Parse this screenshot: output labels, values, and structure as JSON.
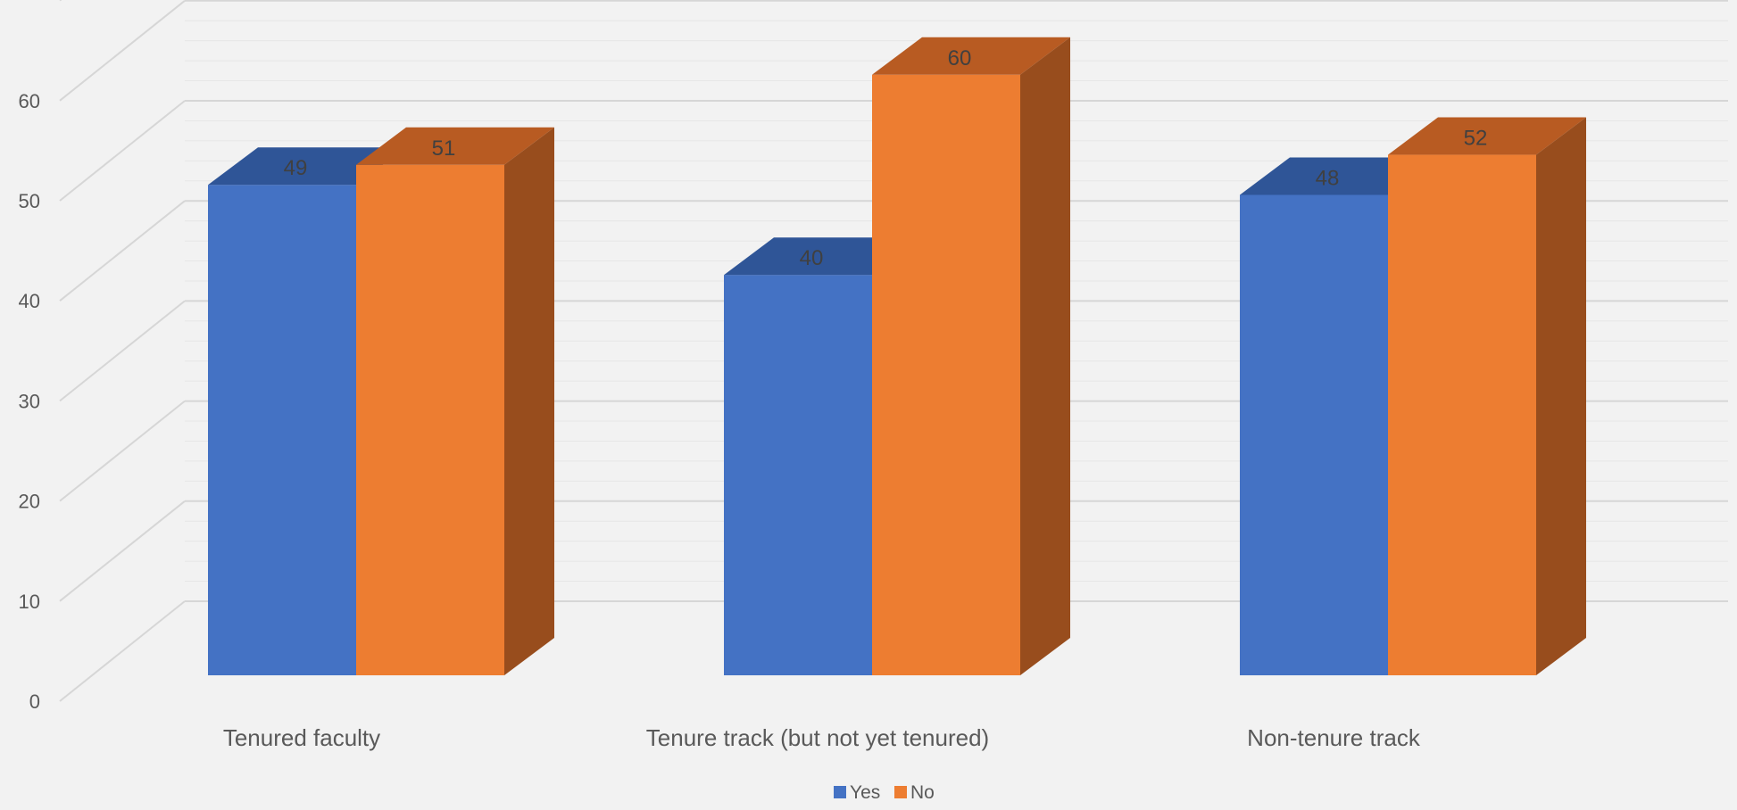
{
  "chart_data": {
    "type": "bar",
    "categories": [
      "Tenured faculty",
      "Tenure track (but not yet tenured)",
      "Non-tenure track"
    ],
    "series": [
      {
        "name": "Yes",
        "values": [
          49,
          40,
          48
        ],
        "color": "#4472c4",
        "top_color": "#2f5597",
        "side_color": "#2f5597"
      },
      {
        "name": "No",
        "values": [
          51,
          60,
          52
        ],
        "color": "#ed7d31",
        "top_color": "#b85b22",
        "side_color": "#984d1d"
      }
    ],
    "yticks": [
      "0",
      "10",
      "20",
      "30",
      "40",
      "50",
      "60"
    ],
    "ylim": [
      0,
      70
    ],
    "grid": true,
    "legend_position": "bottom",
    "style_3d": true
  }
}
